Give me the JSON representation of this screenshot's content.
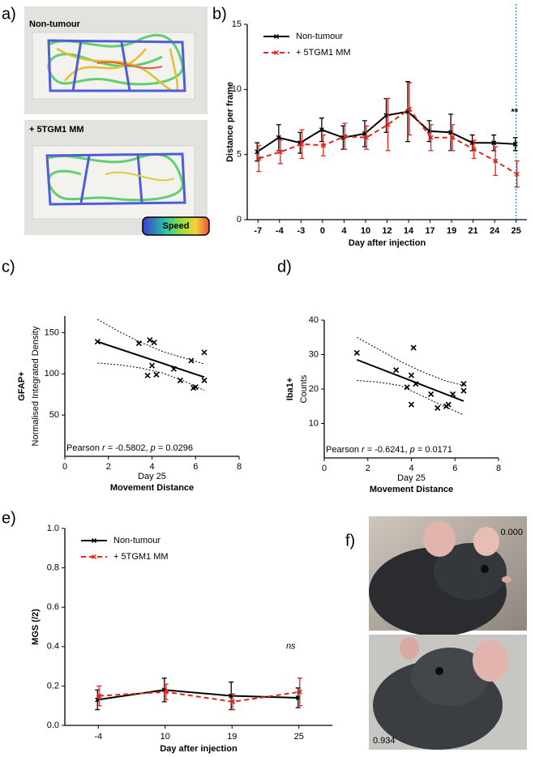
{
  "panel_labels": [
    "a)",
    "b)",
    "c)",
    "d)",
    "e)",
    "f)"
  ],
  "panel_a": {
    "images": [
      {
        "label": "Non-tumour"
      },
      {
        "label": "+ 5TGM1 MM"
      }
    ],
    "colorbar_label": "Speed"
  },
  "chart_data": [
    {
      "type": "line",
      "y_label": "Distance per frame",
      "x_label": "Day after injection",
      "categories": [
        "-7",
        "-4",
        "-3",
        "0",
        "4",
        "10",
        "12",
        "14",
        "17",
        "19",
        "21",
        "24",
        "25"
      ],
      "ylim": [
        0,
        15
      ],
      "yticks": [
        0,
        5,
        10,
        15
      ],
      "annotation": "**",
      "legend": "upper left",
      "series": [
        {
          "name": "Non-tumour",
          "color": "#000000",
          "line_style": "solid",
          "values": [
            5.2,
            6.3,
            5.9,
            6.9,
            6.3,
            6.6,
            8.0,
            8.3,
            6.8,
            6.7,
            5.9,
            5.9,
            5.8
          ],
          "errors": [
            0.7,
            1.0,
            0.8,
            0.9,
            0.9,
            1.0,
            1.3,
            2.3,
            0.8,
            1.4,
            0.6,
            0.6,
            0.5
          ]
        },
        {
          "name": "+ 5TGM1 MM",
          "color": "#e3241b",
          "line_style": "dashed",
          "values": [
            4.7,
            5.2,
            5.8,
            5.7,
            6.4,
            6.3,
            7.3,
            8.5,
            6.3,
            6.3,
            5.4,
            4.5,
            3.5
          ],
          "errors": [
            1.0,
            0.9,
            1.1,
            0.8,
            1.0,
            0.9,
            2.0,
            2.0,
            1.0,
            1.0,
            0.7,
            1.1,
            1.0
          ]
        }
      ]
    },
    {
      "type": "scatter",
      "y_label": "GFAP+",
      "y_sublabel": "Normalised Integrated Density",
      "x_label_top": "Day 25",
      "x_label": "Movement Distance",
      "x": [
        1.5,
        3.4,
        3.9,
        4.1,
        3.8,
        4.0,
        4.2,
        5.0,
        5.3,
        5.8,
        5.9,
        6.0,
        6.4,
        6.4
      ],
      "y": [
        139,
        137,
        141,
        138,
        98,
        110,
        99,
        106,
        92,
        116,
        83,
        84,
        126,
        92
      ],
      "xlim": [
        0,
        8
      ],
      "xticks": [
        0,
        2,
        4,
        6,
        8
      ],
      "ylim": [
        0,
        170
      ],
      "yticks": [
        50,
        100,
        150
      ],
      "fit": {
        "x": [
          1.5,
          6.4
        ],
        "y": [
          139,
          96
        ]
      },
      "band": {
        "x": [
          1.5,
          2.5,
          3.5,
          4.5,
          5.5,
          6.4
        ],
        "upper": [
          166,
          151,
          138,
          127,
          119,
          112
        ],
        "lower": [
          113,
          111,
          107,
          101,
          91,
          80
        ]
      },
      "stat_text": [
        "Pearson ",
        "r",
        " = -0.5802, ",
        "p",
        " = 0.0296"
      ]
    },
    {
      "type": "scatter",
      "y_label": "Iba1+",
      "y_sublabel": "Counts",
      "x_label_top": "Day 25",
      "x_label": "Movement Distance",
      "x": [
        1.5,
        3.3,
        3.8,
        4.0,
        4.0,
        4.1,
        4.2,
        4.9,
        5.2,
        5.6,
        5.7,
        5.9,
        6.4,
        6.4
      ],
      "y": [
        30.5,
        25.5,
        20.5,
        15.5,
        24,
        32,
        21.5,
        18.5,
        14.5,
        15.0,
        15.5,
        18.5,
        19.5,
        21.5
      ],
      "xlim": [
        0,
        8
      ],
      "xticks": [
        0,
        2,
        4,
        6,
        8
      ],
      "ylim": [
        0,
        40
      ],
      "yticks": [
        10,
        20,
        30,
        40
      ],
      "fit": {
        "x": [
          1.5,
          6.4
        ],
        "y": [
          28.5,
          16.5
        ]
      },
      "band": {
        "x": [
          1.5,
          2.5,
          3.5,
          4.5,
          5.5,
          6.4
        ],
        "upper": [
          35,
          31.5,
          28,
          25,
          22.5,
          21
        ],
        "lower": [
          22.5,
          22,
          21,
          18,
          15,
          12.5
        ]
      },
      "stat_text": [
        "Pearson ",
        "r",
        " = -0.6241, ",
        "p",
        " = 0.0171"
      ]
    },
    {
      "type": "line",
      "y_label": "MGS (/2)",
      "x_label": "Day after injection",
      "categories": [
        "-4",
        "10",
        "19",
        "25"
      ],
      "ylim": [
        0,
        1
      ],
      "yticks": [
        {
          "value": 0,
          "label": "0.0"
        },
        {
          "value": 0.2,
          "label": "0.2"
        },
        {
          "value": 0.4,
          "label": "0.4"
        },
        {
          "value": 0.6,
          "label": "0.6"
        },
        {
          "value": 0.8,
          "label": "0.8"
        },
        {
          "value": 1,
          "label": "1.0"
        }
      ],
      "annotation": "ns",
      "legend": "upper left",
      "series": [
        {
          "name": "Non-tumour",
          "color": "#000000",
          "line_style": "solid",
          "values": [
            0.13,
            0.18,
            0.15,
            0.14
          ],
          "errors": [
            0.05,
            0.06,
            0.07,
            0.05
          ]
        },
        {
          "name": "+ 5TGM1 MM",
          "color": "#e3241b",
          "line_style": "dashed",
          "values": [
            0.15,
            0.17,
            0.12,
            0.17
          ],
          "errors": [
            0.05,
            0.04,
            0.04,
            0.07
          ]
        }
      ]
    }
  ],
  "panel_f": {
    "images": [
      {
        "label": "0.000"
      },
      {
        "label": "0.934"
      }
    ]
  }
}
